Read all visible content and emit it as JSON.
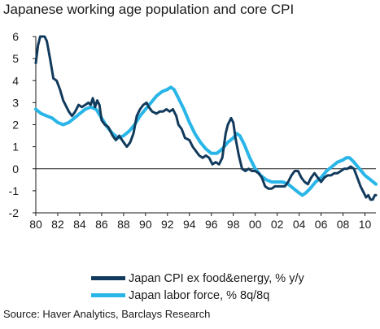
{
  "title": "Japanese working age population and core CPI",
  "source": "Source: Haver Analytics, Barclays Research",
  "colors": {
    "cpi": "#123a5c",
    "labor": "#29b5e8",
    "axis": "#1a1a1a"
  },
  "chart_data": {
    "type": "line",
    "title": "Japanese working age population and core CPI",
    "xlabel": "",
    "ylabel": "",
    "xlim": [
      1980,
      2011
    ],
    "ylim": [
      -2,
      6
    ],
    "x_ticks": [
      {
        "value": 1980,
        "label": "80"
      },
      {
        "value": 1982,
        "label": "82"
      },
      {
        "value": 1984,
        "label": "84"
      },
      {
        "value": 1986,
        "label": "86"
      },
      {
        "value": 1988,
        "label": "88"
      },
      {
        "value": 1990,
        "label": "90"
      },
      {
        "value": 1992,
        "label": "92"
      },
      {
        "value": 1994,
        "label": "94"
      },
      {
        "value": 1996,
        "label": "96"
      },
      {
        "value": 1998,
        "label": "98"
      },
      {
        "value": 2000,
        "label": "00"
      },
      {
        "value": 2002,
        "label": "02"
      },
      {
        "value": 2004,
        "label": "04"
      },
      {
        "value": 2006,
        "label": "06"
      },
      {
        "value": 2008,
        "label": "08"
      },
      {
        "value": 2010,
        "label": "10"
      }
    ],
    "y_ticks": [
      6,
      5,
      4,
      3,
      2,
      1,
      0,
      -1,
      -2
    ],
    "grid": false,
    "legend_position": "bottom",
    "series": [
      {
        "name": "Japan CPI ex food&energy, % y/y",
        "color": "#123a5c",
        "points": [
          [
            1980.0,
            4.8
          ],
          [
            1980.2,
            5.6
          ],
          [
            1980.4,
            6.0
          ],
          [
            1980.6,
            6.0
          ],
          [
            1980.8,
            6.0
          ],
          [
            1981.0,
            5.8
          ],
          [
            1981.3,
            5.0
          ],
          [
            1981.6,
            4.1
          ],
          [
            1981.9,
            4.0
          ],
          [
            1982.2,
            3.6
          ],
          [
            1982.5,
            3.1
          ],
          [
            1982.8,
            2.8
          ],
          [
            1983.0,
            2.6
          ],
          [
            1983.3,
            2.4
          ],
          [
            1983.6,
            2.6
          ],
          [
            1983.9,
            2.9
          ],
          [
            1984.2,
            2.8
          ],
          [
            1984.5,
            2.9
          ],
          [
            1984.8,
            3.0
          ],
          [
            1985.0,
            2.9
          ],
          [
            1985.2,
            3.2
          ],
          [
            1985.4,
            2.8
          ],
          [
            1985.6,
            3.1
          ],
          [
            1985.8,
            2.9
          ],
          [
            1986.0,
            2.2
          ],
          [
            1986.3,
            2.0
          ],
          [
            1986.6,
            1.9
          ],
          [
            1987.0,
            1.5
          ],
          [
            1987.3,
            1.3
          ],
          [
            1987.6,
            1.5
          ],
          [
            1988.0,
            1.2
          ],
          [
            1988.3,
            1.0
          ],
          [
            1988.6,
            1.2
          ],
          [
            1988.9,
            1.6
          ],
          [
            1989.2,
            2.4
          ],
          [
            1989.5,
            2.7
          ],
          [
            1989.8,
            2.9
          ],
          [
            1990.1,
            3.0
          ],
          [
            1990.3,
            2.8
          ],
          [
            1990.6,
            2.6
          ],
          [
            1991.0,
            2.5
          ],
          [
            1991.3,
            2.6
          ],
          [
            1991.6,
            2.6
          ],
          [
            1991.9,
            2.7
          ],
          [
            1992.2,
            2.6
          ],
          [
            1992.5,
            2.7
          ],
          [
            1992.8,
            2.4
          ],
          [
            1993.0,
            2.0
          ],
          [
            1993.3,
            1.8
          ],
          [
            1993.6,
            1.4
          ],
          [
            1994.0,
            1.3
          ],
          [
            1994.3,
            1.0
          ],
          [
            1994.6,
            0.8
          ],
          [
            1994.9,
            0.6
          ],
          [
            1995.2,
            0.5
          ],
          [
            1995.5,
            0.6
          ],
          [
            1995.8,
            0.5
          ],
          [
            1996.1,
            0.2
          ],
          [
            1996.4,
            0.3
          ],
          [
            1996.7,
            0.2
          ],
          [
            1997.0,
            0.5
          ],
          [
            1997.3,
            1.6
          ],
          [
            1997.5,
            2.0
          ],
          [
            1997.8,
            2.3
          ],
          [
            1998.0,
            2.1
          ],
          [
            1998.2,
            1.4
          ],
          [
            1998.5,
            0.6
          ],
          [
            1998.8,
            0.0
          ],
          [
            1999.1,
            -0.1
          ],
          [
            1999.4,
            0.0
          ],
          [
            1999.7,
            -0.1
          ],
          [
            2000.0,
            -0.1
          ],
          [
            2000.3,
            -0.2
          ],
          [
            2000.6,
            -0.4
          ],
          [
            2000.9,
            -0.8
          ],
          [
            2001.2,
            -0.9
          ],
          [
            2001.5,
            -0.9
          ],
          [
            2001.8,
            -0.8
          ],
          [
            2002.1,
            -0.8
          ],
          [
            2002.4,
            -0.8
          ],
          [
            2002.7,
            -0.8
          ],
          [
            2003.0,
            -0.6
          ],
          [
            2003.3,
            -0.3
          ],
          [
            2003.6,
            -0.1
          ],
          [
            2003.9,
            -0.1
          ],
          [
            2004.2,
            -0.4
          ],
          [
            2004.5,
            -0.6
          ],
          [
            2004.8,
            -0.7
          ],
          [
            2005.1,
            -0.4
          ],
          [
            2005.4,
            -0.2
          ],
          [
            2005.7,
            -0.4
          ],
          [
            2006.0,
            -0.6
          ],
          [
            2006.3,
            -0.4
          ],
          [
            2006.6,
            -0.3
          ],
          [
            2006.9,
            -0.3
          ],
          [
            2007.2,
            -0.2
          ],
          [
            2007.5,
            -0.2
          ],
          [
            2007.8,
            -0.1
          ],
          [
            2008.1,
            0.0
          ],
          [
            2008.4,
            0.0
          ],
          [
            2008.7,
            0.1
          ],
          [
            2009.0,
            0.0
          ],
          [
            2009.3,
            -0.4
          ],
          [
            2009.6,
            -0.8
          ],
          [
            2009.9,
            -1.1
          ],
          [
            2010.1,
            -1.3
          ],
          [
            2010.3,
            -1.2
          ],
          [
            2010.5,
            -1.4
          ],
          [
            2010.7,
            -1.4
          ],
          [
            2010.9,
            -1.2
          ],
          [
            2011.0,
            -1.2
          ]
        ]
      },
      {
        "name": "Japan labor force, % 8q/8q",
        "color": "#29b5e8",
        "points": [
          [
            1980.0,
            2.7
          ],
          [
            1980.5,
            2.5
          ],
          [
            1981.0,
            2.4
          ],
          [
            1981.5,
            2.3
          ],
          [
            1982.0,
            2.1
          ],
          [
            1982.5,
            2.0
          ],
          [
            1983.0,
            2.1
          ],
          [
            1983.5,
            2.3
          ],
          [
            1984.0,
            2.5
          ],
          [
            1984.5,
            2.7
          ],
          [
            1985.0,
            2.8
          ],
          [
            1985.5,
            2.7
          ],
          [
            1986.0,
            2.3
          ],
          [
            1986.5,
            1.9
          ],
          [
            1987.0,
            1.6
          ],
          [
            1987.5,
            1.4
          ],
          [
            1988.0,
            1.5
          ],
          [
            1988.5,
            1.7
          ],
          [
            1989.0,
            2.0
          ],
          [
            1989.5,
            2.4
          ],
          [
            1990.0,
            2.7
          ],
          [
            1990.5,
            3.0
          ],
          [
            1991.0,
            3.3
          ],
          [
            1991.5,
            3.5
          ],
          [
            1992.0,
            3.6
          ],
          [
            1992.3,
            3.7
          ],
          [
            1992.6,
            3.6
          ],
          [
            1993.0,
            3.2
          ],
          [
            1993.5,
            2.7
          ],
          [
            1994.0,
            2.1
          ],
          [
            1994.5,
            1.6
          ],
          [
            1995.0,
            1.2
          ],
          [
            1995.5,
            0.9
          ],
          [
            1996.0,
            0.7
          ],
          [
            1996.5,
            0.7
          ],
          [
            1997.0,
            0.9
          ],
          [
            1997.5,
            1.2
          ],
          [
            1998.0,
            1.4
          ],
          [
            1998.3,
            1.6
          ],
          [
            1998.6,
            1.5
          ],
          [
            1999.0,
            1.1
          ],
          [
            1999.5,
            0.5
          ],
          [
            2000.0,
            0.0
          ],
          [
            2000.5,
            -0.3
          ],
          [
            2001.0,
            -0.5
          ],
          [
            2001.5,
            -0.6
          ],
          [
            2002.0,
            -0.6
          ],
          [
            2002.5,
            -0.6
          ],
          [
            2003.0,
            -0.7
          ],
          [
            2003.5,
            -0.9
          ],
          [
            2004.0,
            -1.1
          ],
          [
            2004.3,
            -1.2
          ],
          [
            2004.6,
            -1.1
          ],
          [
            2005.0,
            -0.9
          ],
          [
            2005.5,
            -0.6
          ],
          [
            2006.0,
            -0.4
          ],
          [
            2006.5,
            -0.1
          ],
          [
            2007.0,
            0.1
          ],
          [
            2007.5,
            0.3
          ],
          [
            2008.0,
            0.4
          ],
          [
            2008.3,
            0.5
          ],
          [
            2008.6,
            0.5
          ],
          [
            2009.0,
            0.3
          ],
          [
            2009.5,
            0.0
          ],
          [
            2010.0,
            -0.3
          ],
          [
            2010.5,
            -0.5
          ],
          [
            2011.0,
            -0.7
          ]
        ]
      }
    ]
  }
}
